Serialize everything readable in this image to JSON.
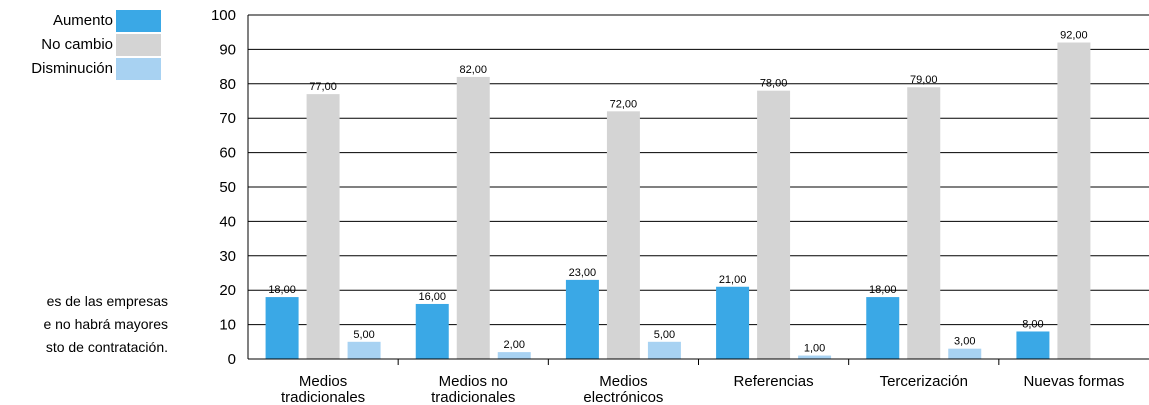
{
  "chart_data": {
    "type": "bar",
    "title": "",
    "xlabel": "",
    "ylabel": "",
    "ylim": [
      0,
      100
    ],
    "yticks": [
      0,
      10,
      20,
      30,
      40,
      50,
      60,
      70,
      80,
      90,
      100
    ],
    "grid": true,
    "legend_position": "top-left",
    "categories": [
      [
        "Medios",
        "tradicionales"
      ],
      [
        "Medios no",
        "tradicionales"
      ],
      [
        "Medios",
        "electrónicos"
      ],
      [
        "Referencias"
      ],
      [
        "Tercerización"
      ],
      [
        "Nuevas formas"
      ]
    ],
    "series": [
      {
        "name": "Aumento",
        "color": "#3aa8e6",
        "values": [
          18,
          16,
          23,
          21,
          18,
          8
        ],
        "labels": [
          "18,00",
          "16,00",
          "23,00",
          "21,00",
          "18,00",
          "8,00"
        ]
      },
      {
        "name": "No cambio",
        "color": "#d4d4d4",
        "values": [
          77,
          82,
          72,
          78,
          79,
          92
        ],
        "labels": [
          "77,00",
          "82,00",
          "72,00",
          "78,00",
          "79,00",
          "92,00"
        ]
      },
      {
        "name": "Disminución",
        "color": "#a8d2f2",
        "values": [
          5,
          2,
          5,
          1,
          3,
          null
        ],
        "labels": [
          "5,00",
          "2,00",
          "5,00",
          "1,00",
          "3,00",
          null
        ]
      }
    ]
  },
  "side_note": {
    "lines": [
      "es de las empresas",
      "e no habrá mayores",
      "sto de contratación."
    ]
  }
}
